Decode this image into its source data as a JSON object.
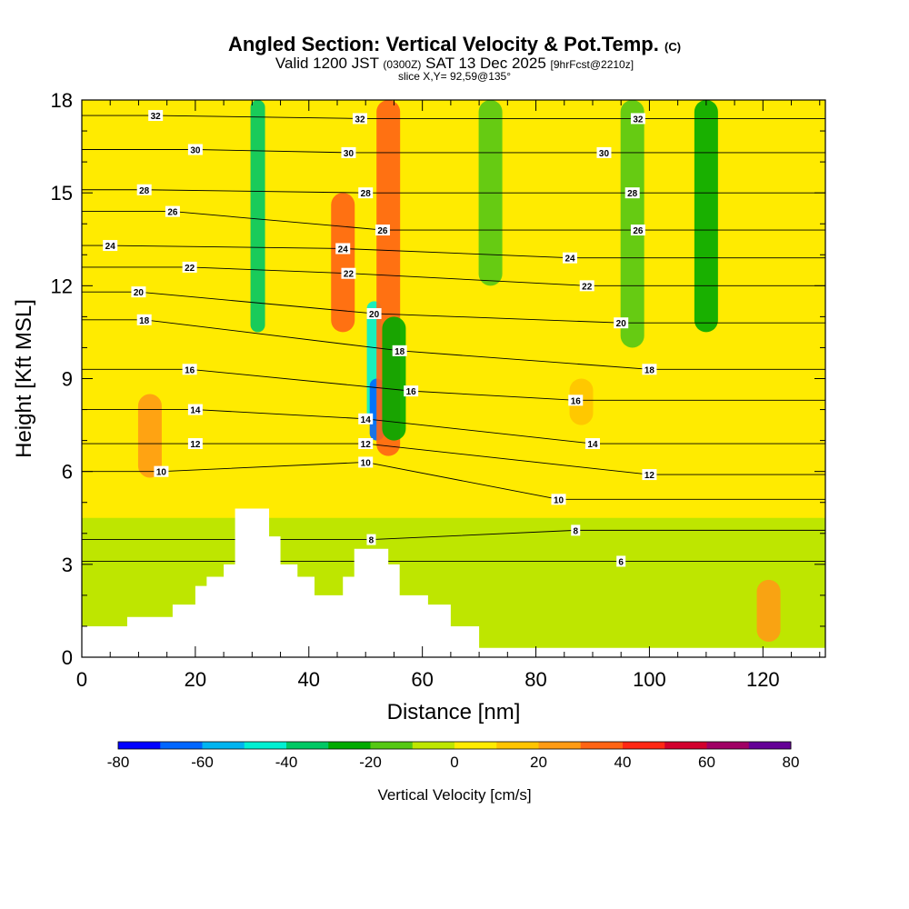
{
  "title": {
    "main": "Angled Section: Vertical Velocity & Pot.Temp.",
    "main_suffix": "(C)",
    "valid_prefix": "Valid 1200 JST",
    "valid_utc": "(0300Z)",
    "valid_date": "SAT 13 Dec 2025",
    "valid_fcst": "[9hrFcst@2210z]",
    "slice": "slice X,Y= 92,59@135°"
  },
  "chart_data": {
    "type": "heatmap",
    "title": "Angled Section: Vertical Velocity & Pot.Temp.",
    "xlabel": "Distance [nm]",
    "ylabel": "Height [Kft MSL]",
    "xlim": [
      0,
      131
    ],
    "ylim": [
      0,
      18
    ],
    "x_ticks": [
      0,
      20,
      40,
      60,
      80,
      100,
      120
    ],
    "x_tick_labels": [
      "0",
      "20",
      "40",
      "60",
      "80",
      "100",
      "120"
    ],
    "y_ticks": [
      0,
      3,
      6,
      9,
      12,
      15,
      18
    ],
    "y_tick_labels": [
      "0",
      "3",
      "6",
      "9",
      "12",
      "15",
      "18"
    ],
    "colorbar": {
      "label": "Vertical Velocity [cm/s]",
      "min": -80,
      "max": 80,
      "step": 10,
      "tick_values": [
        -80,
        -60,
        -40,
        -20,
        0,
        20,
        40,
        60,
        80
      ],
      "tick_labels": [
        "-80",
        "-60",
        "-40",
        "-20",
        "0",
        "20",
        "40",
        "60",
        "80"
      ],
      "colors": [
        "#0000ff",
        "#0066ff",
        "#00b4f0",
        "#00f0d2",
        "#00c864",
        "#00aa00",
        "#55c814",
        "#bee600",
        "#ffeb00",
        "#ffc400",
        "#ff9b14",
        "#ff6414",
        "#ff2814",
        "#d2002d",
        "#a00064",
        "#640096"
      ]
    },
    "terrain": [
      [
        0,
        1.0
      ],
      [
        8,
        1.0
      ],
      [
        8,
        1.3
      ],
      [
        16,
        1.3
      ],
      [
        16,
        1.7
      ],
      [
        20,
        1.7
      ],
      [
        20,
        2.3
      ],
      [
        22,
        2.3
      ],
      [
        22,
        2.6
      ],
      [
        25,
        2.6
      ],
      [
        25,
        3.0
      ],
      [
        27,
        3.0
      ],
      [
        27,
        4.8
      ],
      [
        33,
        4.8
      ],
      [
        33,
        3.9
      ],
      [
        35,
        3.9
      ],
      [
        35,
        3.0
      ],
      [
        38,
        3.0
      ],
      [
        38,
        2.6
      ],
      [
        41,
        2.6
      ],
      [
        41,
        2.0
      ],
      [
        46,
        2.0
      ],
      [
        46,
        2.6
      ],
      [
        48,
        2.6
      ],
      [
        48,
        3.5
      ],
      [
        54,
        3.5
      ],
      [
        54,
        3.0
      ],
      [
        56,
        3.0
      ],
      [
        56,
        2.0
      ],
      [
        61,
        2.0
      ],
      [
        61,
        1.7
      ],
      [
        65,
        1.7
      ],
      [
        65,
        1.0
      ],
      [
        70,
        1.0
      ],
      [
        70,
        0.3
      ],
      [
        131,
        0.3
      ]
    ],
    "velocity_features": [
      {
        "x": 31,
        "ymin": 10.5,
        "ymax": 18,
        "value": -40
      },
      {
        "x": 51.5,
        "ymin": 7.5,
        "ymax": 11.5,
        "value": -50
      },
      {
        "x": 52,
        "ymin": 7.0,
        "ymax": 9.0,
        "value": -70
      },
      {
        "x": 54,
        "ymin": 6.5,
        "ymax": 18,
        "value": 30
      },
      {
        "x": 46,
        "ymin": 10.5,
        "ymax": 15,
        "value": 30
      },
      {
        "x": 12,
        "ymin": 5.8,
        "ymax": 8.5,
        "value": 20
      },
      {
        "x": 55,
        "ymin": 7.0,
        "ymax": 11.0,
        "value": -25
      },
      {
        "x": 72,
        "ymin": 12,
        "ymax": 18,
        "value": -20
      },
      {
        "x": 110,
        "ymin": 10.5,
        "ymax": 18,
        "value": -25
      },
      {
        "x": 97,
        "ymin": 10,
        "ymax": 18,
        "value": -15
      },
      {
        "x": 88,
        "ymin": 7.5,
        "ymax": 9,
        "value": 15
      },
      {
        "x": 121,
        "ymin": 0.5,
        "ymax": 2.5,
        "value": 20
      }
    ],
    "pot_temp_contour_labels": [
      {
        "text": "32",
        "x": 13,
        "y": 17.5
      },
      {
        "text": "30",
        "x": 20,
        "y": 16.4
      },
      {
        "text": "28",
        "x": 11,
        "y": 15.1
      },
      {
        "text": "26",
        "x": 16,
        "y": 14.4
      },
      {
        "text": "24",
        "x": 5,
        "y": 13.3
      },
      {
        "text": "22",
        "x": 19,
        "y": 12.6
      },
      {
        "text": "20",
        "x": 10,
        "y": 11.8
      },
      {
        "text": "18",
        "x": 11,
        "y": 10.9
      },
      {
        "text": "16",
        "x": 19,
        "y": 9.3
      },
      {
        "text": "14",
        "x": 20,
        "y": 8.0
      },
      {
        "text": "12",
        "x": 20,
        "y": 6.9
      },
      {
        "text": "10",
        "x": 14,
        "y": 6.0
      },
      {
        "text": "32",
        "x": 49,
        "y": 17.4
      },
      {
        "text": "30",
        "x": 47,
        "y": 16.3
      },
      {
        "text": "28",
        "x": 50,
        "y": 15.0
      },
      {
        "text": "26",
        "x": 53,
        "y": 13.8
      },
      {
        "text": "24",
        "x": 46,
        "y": 13.2
      },
      {
        "text": "22",
        "x": 47,
        "y": 12.4
      },
      {
        "text": "20",
        "x": 51.5,
        "y": 11.1
      },
      {
        "text": "18",
        "x": 56,
        "y": 9.9
      },
      {
        "text": "16",
        "x": 58,
        "y": 8.6
      },
      {
        "text": "14",
        "x": 50,
        "y": 7.7
      },
      {
        "text": "12",
        "x": 50,
        "y": 6.9
      },
      {
        "text": "10",
        "x": 50,
        "y": 6.3
      },
      {
        "text": "8",
        "x": 51,
        "y": 3.8
      },
      {
        "text": "32",
        "x": 98,
        "y": 17.4
      },
      {
        "text": "30",
        "x": 92,
        "y": 16.3
      },
      {
        "text": "28",
        "x": 97,
        "y": 15.0
      },
      {
        "text": "26",
        "x": 98,
        "y": 13.8
      },
      {
        "text": "24",
        "x": 86,
        "y": 12.9
      },
      {
        "text": "22",
        "x": 89,
        "y": 12.0
      },
      {
        "text": "20",
        "x": 95,
        "y": 10.8
      },
      {
        "text": "18",
        "x": 100,
        "y": 9.3
      },
      {
        "text": "16",
        "x": 87,
        "y": 8.3
      },
      {
        "text": "14",
        "x": 90,
        "y": 6.9
      },
      {
        "text": "12",
        "x": 100,
        "y": 5.9
      },
      {
        "text": "10",
        "x": 84,
        "y": 5.1
      },
      {
        "text": "8",
        "x": 87,
        "y": 4.1
      },
      {
        "text": "6",
        "x": 95,
        "y": 3.1
      }
    ]
  }
}
